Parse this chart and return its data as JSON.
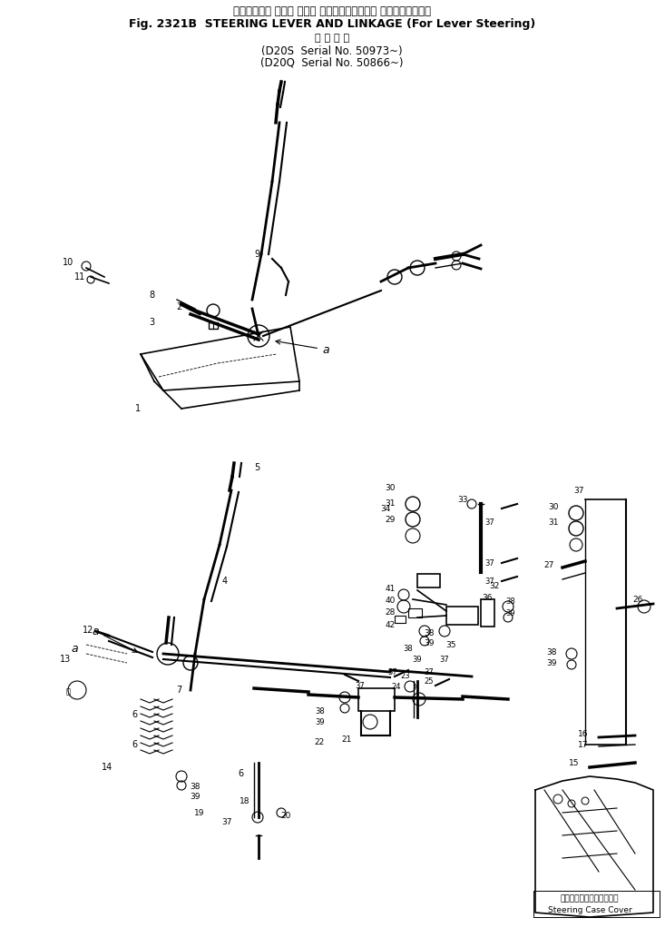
{
  "title_jp": "ステアリング レバー および リンケージ（レバー ステアリング用）",
  "title_en": "Fig. 2321B  STEERING LEVER AND LINKAGE (For Lever Steering)",
  "subtitle_jp": "適 用 号 機",
  "subtitle_d20s": "(D20S  Serial No. 50973~)",
  "subtitle_d20q": "(D20Q  Serial No. 50866~)",
  "bg_color": "#ffffff",
  "line_color": "#000000",
  "title_fontsize": 9,
  "fig_width": 7.33,
  "fig_height": 10.22,
  "dpi": 100,
  "footer_jp": "ステアリングケースカバー",
  "footer_en": "Steering Case Cover"
}
